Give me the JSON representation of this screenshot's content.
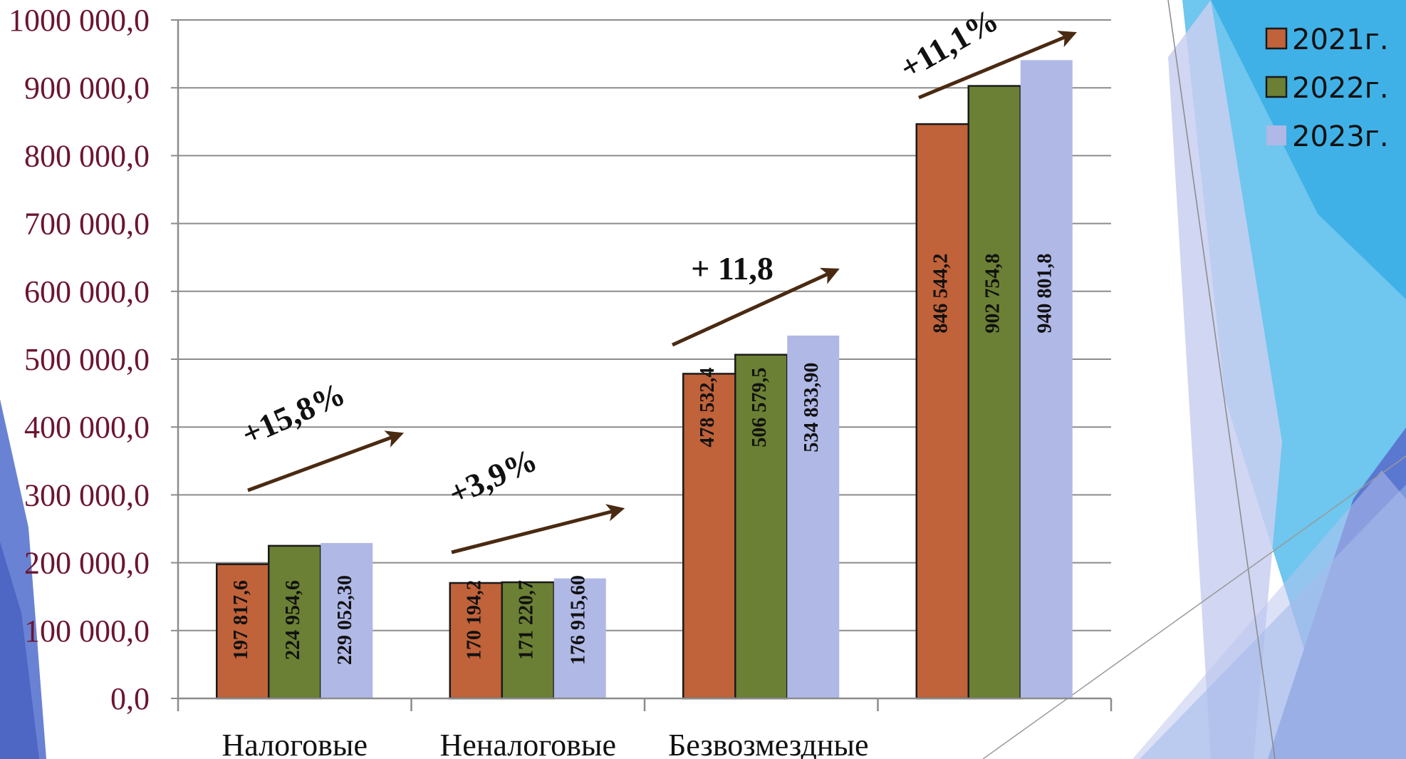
{
  "colors": {
    "series_2021": "#c0623a",
    "series_2022": "#6b8034",
    "series_2023": "#b0b8e6",
    "arrow": "#4a2a12",
    "grid": "#8c8c8c",
    "tick_text": "#6b1530"
  },
  "chart_data": {
    "type": "bar",
    "categories": [
      "Налоговые",
      "Неналоговые",
      "Безвозмездные",
      ""
    ],
    "series": [
      {
        "name": "2021г.",
        "values": [
          197817.6,
          170194.2,
          478532.4,
          846544.2
        ],
        "labels": [
          "197 817,6",
          "170 194,2",
          "478 532,4",
          "846 544,2"
        ]
      },
      {
        "name": "2022г.",
        "values": [
          224954.6,
          171220.7,
          506579.5,
          902754.8
        ],
        "labels": [
          "224 954,6",
          "171 220,7",
          "506 579,5",
          "902 754,8"
        ]
      },
      {
        "name": "2023г.",
        "values": [
          229052.3,
          176915.6,
          534833.9,
          940801.8
        ],
        "labels": [
          "229 052,30",
          "176 915,60",
          "534 833,90",
          "940 801,8"
        ]
      }
    ],
    "y_ticks": [
      "0,0",
      "100 000,0",
      "200 000,0",
      "300 000,0",
      "400 000,0",
      "500 000,0",
      "600 000,0",
      "700 000,0",
      "800 000,0",
      "900 000,0",
      "1000 000,0"
    ],
    "ylim": [
      0,
      1000000
    ],
    "grid": true,
    "legend_position": "top-right",
    "growth_annotations": [
      "+15,8%",
      "+3,9%",
      "+ 11,8",
      "+11,1%"
    ]
  }
}
